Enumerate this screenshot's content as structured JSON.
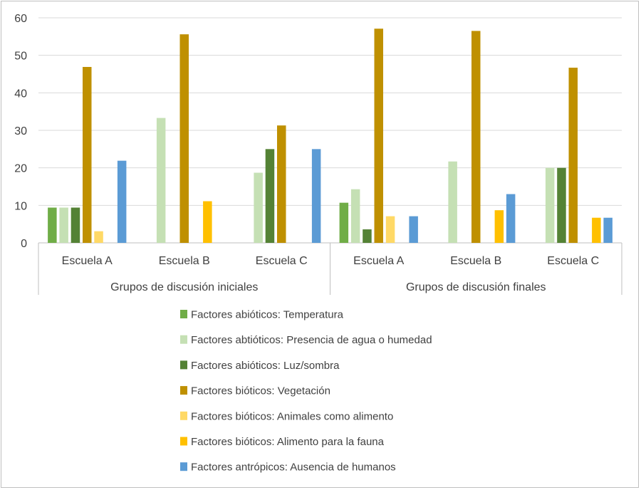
{
  "chart_data": {
    "type": "bar",
    "groups": [
      {
        "label": "Grupos de discusión iniciales",
        "categories": [
          "Escuela A",
          "Escuela B",
          "Escuela C"
        ]
      },
      {
        "label": "Grupos de discusión finales",
        "categories": [
          "Escuela A",
          "Escuela B",
          "Escuela C"
        ]
      }
    ],
    "categories": [
      "Escuela A",
      "Escuela B",
      "Escuela C",
      "Escuela A",
      "Escuela B",
      "Escuela C"
    ],
    "ylim": [
      0,
      60
    ],
    "yticks": [
      "0",
      "10",
      "20",
      "30",
      "40",
      "50",
      "60"
    ],
    "grid": true,
    "legend_position": "bottom",
    "series": [
      {
        "name": "Factores abióticos: Temperatura",
        "color": "#70ad47",
        "values": [
          9.4,
          0,
          0,
          10.7,
          0,
          0
        ]
      },
      {
        "name": "Factores abtióticos: Presencia de agua o humedad",
        "color": "#c5e0b4",
        "values": [
          9.4,
          33.3,
          18.7,
          14.3,
          21.7,
          20.0
        ]
      },
      {
        "name": "Factores abióticos: Luz/sombra",
        "color": "#548235",
        "values": [
          9.4,
          0,
          25.0,
          3.6,
          0,
          20.0
        ]
      },
      {
        "name": "Factores bióticos: Vegetación",
        "color": "#bf9000",
        "values": [
          46.9,
          55.6,
          31.3,
          57.1,
          56.5,
          46.7
        ]
      },
      {
        "name": "Factores bióticos: Animales como alimento",
        "color": "#ffd966",
        "values": [
          3.1,
          0,
          0,
          7.1,
          0,
          0
        ]
      },
      {
        "name": "Factores bióticos: Alimento para la fauna",
        "color": "#ffc000",
        "values": [
          0,
          11.1,
          0,
          0,
          8.7,
          6.7
        ]
      },
      {
        "name": "Factores antrópicos: Ausencia de humanos",
        "color": "#5b9bd5",
        "values": [
          21.9,
          0,
          25.0,
          7.1,
          13.0,
          6.7
        ]
      }
    ]
  }
}
